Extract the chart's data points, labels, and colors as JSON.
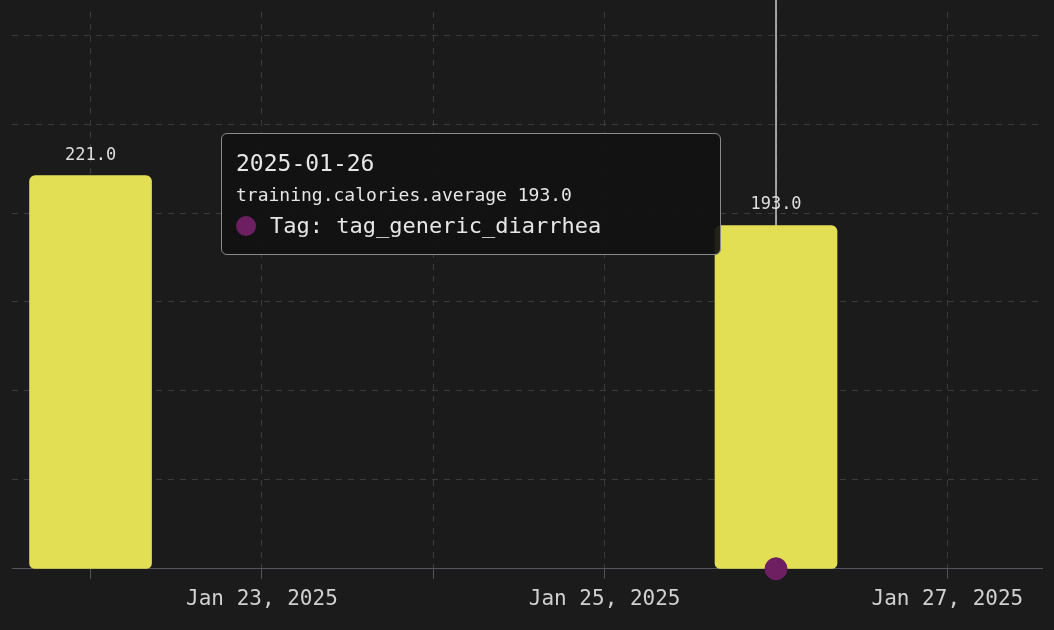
{
  "chart_data": {
    "type": "bar",
    "xlim": [
      "2025-01-21T13:00",
      "2025-01-27T13:15"
    ],
    "xticks": [
      {
        "value": "2025-01-22",
        "label": null
      },
      {
        "value": "2025-01-23",
        "label": "Jan 23, 2025"
      },
      {
        "value": "2025-01-24",
        "label": null
      },
      {
        "value": "2025-01-25",
        "label": "Jan 25, 2025"
      },
      {
        "value": "2025-01-26",
        "label": null
      },
      {
        "value": "2025-01-27",
        "label": "Jan 27, 2025"
      }
    ],
    "ylim": [
      0,
      313
    ],
    "yticks": [
      {
        "value": 50,
        "label": null
      },
      {
        "value": 100,
        "label": null
      },
      {
        "value": 150,
        "label": null
      },
      {
        "value": 200,
        "label": null
      },
      {
        "value": 250,
        "label": null
      },
      {
        "value": 300,
        "label": null
      }
    ],
    "tick_labels": "x",
    "grid": true,
    "legend": "top",
    "series": [
      {
        "color": "#e3df55",
        "x": [
          "2025-01-22",
          "2025-01-26"
        ],
        "values": [
          221,
          193
        ],
        "value_labels": [
          "221.0",
          "193.0"
        ]
      },
      {
        "type": "scatter",
        "name": "Tag: tag_generic_diarrhea",
        "color": "#6e1f62",
        "x": [
          "2025-01-26"
        ],
        "values": [
          0
        ]
      }
    ],
    "ref_lines": [
      {
        "axis": "x",
        "value": "2025-01-26",
        "color": "#cccccc"
      }
    ],
    "annotations": [
      "2025-01-26",
      "training.calories.average 193.0"
    ]
  }
}
